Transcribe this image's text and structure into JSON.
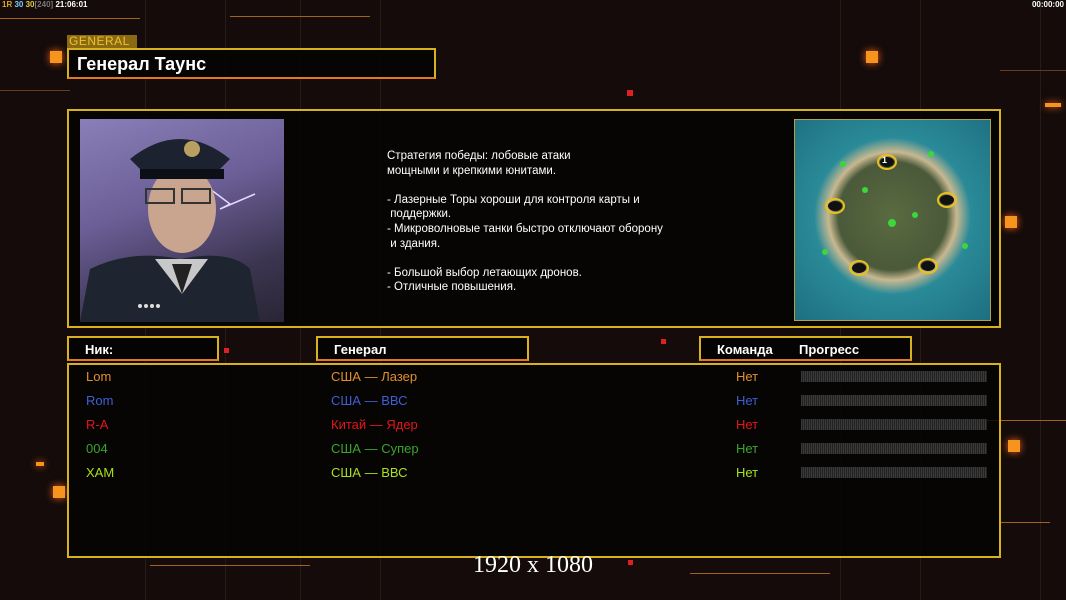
{
  "status": {
    "left_prefix": "1R",
    "fps_a": "30",
    "fps_b": "30",
    "fps_max": "[240]",
    "clock": "21:06:01",
    "timer": "00:00:00"
  },
  "general": {
    "tag": "GENERAL",
    "name": "Генерал Таунс",
    "description": [
      "Стратегия победы: лобовые атаки",
      "мощными и крепкими юнитами.",
      "",
      "- Лазерные Торы хороши для контроля карты и",
      " поддержки.",
      "- Микроволновые танки быстро отключают оборону",
      " и здания.",
      "",
      "- Большой выбор летающих дронов.",
      "- Отличные повышения."
    ]
  },
  "map": {
    "start_marker": "1"
  },
  "table": {
    "headers": {
      "nick": "Ник:",
      "general": "Генерал",
      "team": "Команда",
      "progress": "Прогресс"
    },
    "rows": [
      {
        "nick": "Lom",
        "general": "США — Лазер",
        "team": "Нет",
        "color": "#e0902c",
        "progress": 0
      },
      {
        "nick": "Rom",
        "general": "США — ВВС",
        "team": "Нет",
        "color": "#3e5fd6",
        "progress": 0
      },
      {
        "nick": "R-A",
        "general": "Китай — Ядер",
        "team": "Нет",
        "color": "#e4161a",
        "progress": 0
      },
      {
        "nick": "004",
        "general": "США — Супер",
        "team": "Нет",
        "color": "#3aa52a",
        "progress": 0
      },
      {
        "nick": "XAM",
        "general": "США — ВВС",
        "team": "Нет",
        "color": "#a8e21a",
        "progress": 0
      }
    ]
  },
  "resolution": "1920 x 1080"
}
